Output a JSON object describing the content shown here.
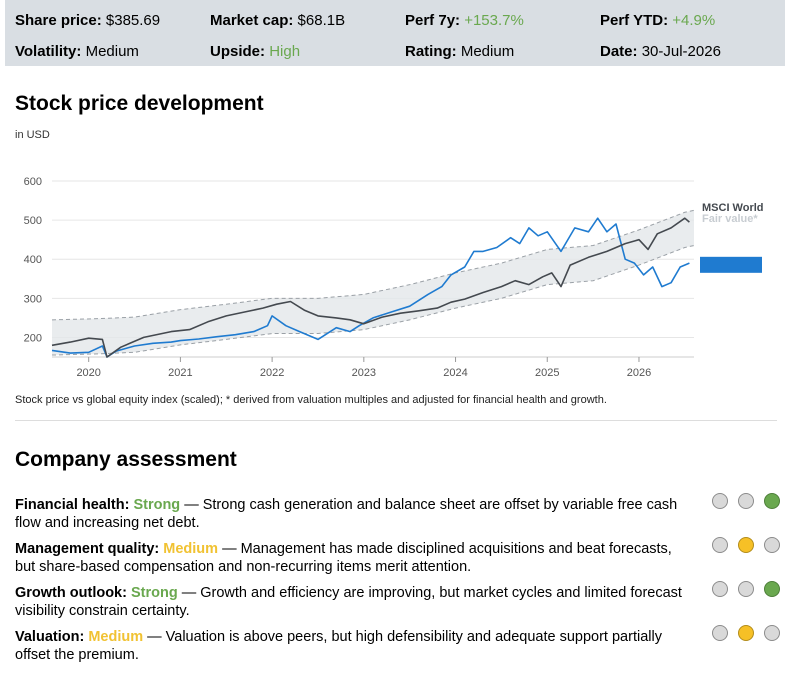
{
  "stats": [
    {
      "label": "Share price:",
      "value": "$385.69",
      "positive": false
    },
    {
      "label": "Market cap:",
      "value": "$68.1B",
      "positive": false
    },
    {
      "label": "Perf 7y:",
      "value": "+153.7%",
      "positive": true
    },
    {
      "label": "Perf YTD:",
      "value": "+4.9%",
      "positive": true
    },
    {
      "label": "Volatility:",
      "value": "Medium",
      "positive": false
    },
    {
      "label": "Upside:",
      "value": "High",
      "positive": true
    },
    {
      "label": "Rating:",
      "value": "Medium",
      "positive": false
    },
    {
      "label": "Date:",
      "value": "30-Jul-2026",
      "positive": false
    }
  ],
  "chart_section": {
    "title": "Stock price development",
    "unit": "in USD",
    "caption": "Stock price vs global equity index (scaled); * derived from valuation multiples and adjusted for financial health and growth."
  },
  "chart_data": {
    "type": "line",
    "ylim": [
      150,
      600
    ],
    "xlim": [
      2019.6,
      2026.6
    ],
    "y_ticks": [
      200,
      300,
      400,
      500,
      600
    ],
    "x_ticks": [
      2020,
      2021,
      2022,
      2023,
      2024,
      2025,
      2026
    ],
    "grid": true,
    "series": [
      {
        "name": "",
        "color": "#1f7bd0",
        "points": [
          [
            2019.6,
            167
          ],
          [
            2019.8,
            160
          ],
          [
            2020.0,
            162
          ],
          [
            2020.15,
            178
          ],
          [
            2020.2,
            150
          ],
          [
            2020.3,
            165
          ],
          [
            2020.5,
            178
          ],
          [
            2020.7,
            185
          ],
          [
            2020.9,
            188
          ],
          [
            2021.0,
            192
          ],
          [
            2021.2,
            196
          ],
          [
            2021.4,
            202
          ],
          [
            2021.6,
            207
          ],
          [
            2021.8,
            215
          ],
          [
            2021.95,
            230
          ],
          [
            2022.0,
            255
          ],
          [
            2022.15,
            230
          ],
          [
            2022.3,
            215
          ],
          [
            2022.5,
            195
          ],
          [
            2022.7,
            225
          ],
          [
            2022.85,
            215
          ],
          [
            2022.95,
            230
          ],
          [
            2023.1,
            250
          ],
          [
            2023.3,
            265
          ],
          [
            2023.5,
            280
          ],
          [
            2023.7,
            310
          ],
          [
            2023.85,
            330
          ],
          [
            2023.95,
            360
          ],
          [
            2024.1,
            380
          ],
          [
            2024.2,
            420
          ],
          [
            2024.3,
            420
          ],
          [
            2024.45,
            430
          ],
          [
            2024.6,
            455
          ],
          [
            2024.7,
            440
          ],
          [
            2024.8,
            480
          ],
          [
            2024.9,
            460
          ],
          [
            2025.0,
            470
          ],
          [
            2025.15,
            420
          ],
          [
            2025.3,
            480
          ],
          [
            2025.45,
            470
          ],
          [
            2025.55,
            505
          ],
          [
            2025.65,
            470
          ],
          [
            2025.75,
            490
          ],
          [
            2025.85,
            400
          ],
          [
            2025.95,
            390
          ],
          [
            2026.05,
            360
          ],
          [
            2026.15,
            380
          ],
          [
            2026.25,
            330
          ],
          [
            2026.35,
            340
          ],
          [
            2026.45,
            380
          ],
          [
            2026.55,
            390
          ]
        ]
      },
      {
        "name": "MSCI World",
        "color": "#44494f",
        "points": [
          [
            2019.6,
            180
          ],
          [
            2019.8,
            188
          ],
          [
            2020.0,
            198
          ],
          [
            2020.15,
            195
          ],
          [
            2020.2,
            150
          ],
          [
            2020.35,
            175
          ],
          [
            2020.6,
            200
          ],
          [
            2020.9,
            215
          ],
          [
            2021.1,
            220
          ],
          [
            2021.3,
            240
          ],
          [
            2021.5,
            255
          ],
          [
            2021.7,
            265
          ],
          [
            2021.9,
            275
          ],
          [
            2022.05,
            285
          ],
          [
            2022.2,
            292
          ],
          [
            2022.35,
            270
          ],
          [
            2022.5,
            255
          ],
          [
            2022.7,
            250
          ],
          [
            2022.85,
            245
          ],
          [
            2023.0,
            235
          ],
          [
            2023.2,
            252
          ],
          [
            2023.4,
            262
          ],
          [
            2023.6,
            268
          ],
          [
            2023.8,
            275
          ],
          [
            2023.95,
            290
          ],
          [
            2024.1,
            298
          ],
          [
            2024.3,
            315
          ],
          [
            2024.5,
            330
          ],
          [
            2024.65,
            345
          ],
          [
            2024.8,
            335
          ],
          [
            2024.95,
            355
          ],
          [
            2025.05,
            365
          ],
          [
            2025.15,
            330
          ],
          [
            2025.25,
            385
          ],
          [
            2025.45,
            405
          ],
          [
            2025.65,
            420
          ],
          [
            2025.85,
            440
          ],
          [
            2026.0,
            450
          ],
          [
            2026.1,
            425
          ],
          [
            2026.2,
            465
          ],
          [
            2026.35,
            480
          ],
          [
            2026.5,
            505
          ],
          [
            2026.55,
            495
          ]
        ]
      }
    ],
    "fair_value_band": {
      "name": "Fair value*",
      "color": "#c8cdd2",
      "center": [
        [
          2019.6,
          200
        ],
        [
          2020.1,
          203
        ],
        [
          2020.5,
          207
        ],
        [
          2021.0,
          226
        ],
        [
          2021.5,
          240
        ],
        [
          2022.0,
          255
        ],
        [
          2022.5,
          255
        ],
        [
          2023.0,
          265
        ],
        [
          2023.5,
          290
        ],
        [
          2024.0,
          320
        ],
        [
          2024.5,
          345
        ],
        [
          2025.0,
          380
        ],
        [
          2025.5,
          390
        ],
        [
          2026.0,
          430
        ],
        [
          2026.5,
          475
        ],
        [
          2026.6,
          480
        ]
      ],
      "half_width": 45
    },
    "fair_value_marker": {
      "value": 385.69,
      "color": "#1f7bd0"
    }
  },
  "assessment": {
    "title": "Company assessment",
    "items": [
      {
        "label": "Financial health:",
        "rating": "Strong",
        "level": "strong",
        "dots": 3,
        "text": "— Strong cash generation and balance sheet are offset by variable free cash flow and increasing net debt."
      },
      {
        "label": "Management quality:",
        "rating": "Medium",
        "level": "medium",
        "dots": 2,
        "text": "— Management has made disciplined acquisitions and beat forecasts, but share-based compensation and non-recurring items merit attention."
      },
      {
        "label": "Growth outlook:",
        "rating": "Strong",
        "level": "strong",
        "dots": 3,
        "text": "— Growth and efficiency are improving, but market cycles and limited forecast visibility constrain certainty."
      },
      {
        "label": "Valuation:",
        "rating": "Medium",
        "level": "medium",
        "dots": 2,
        "text": "— Valuation is above peers, but high defensibility and adequate support partially offset the premium."
      }
    ]
  }
}
